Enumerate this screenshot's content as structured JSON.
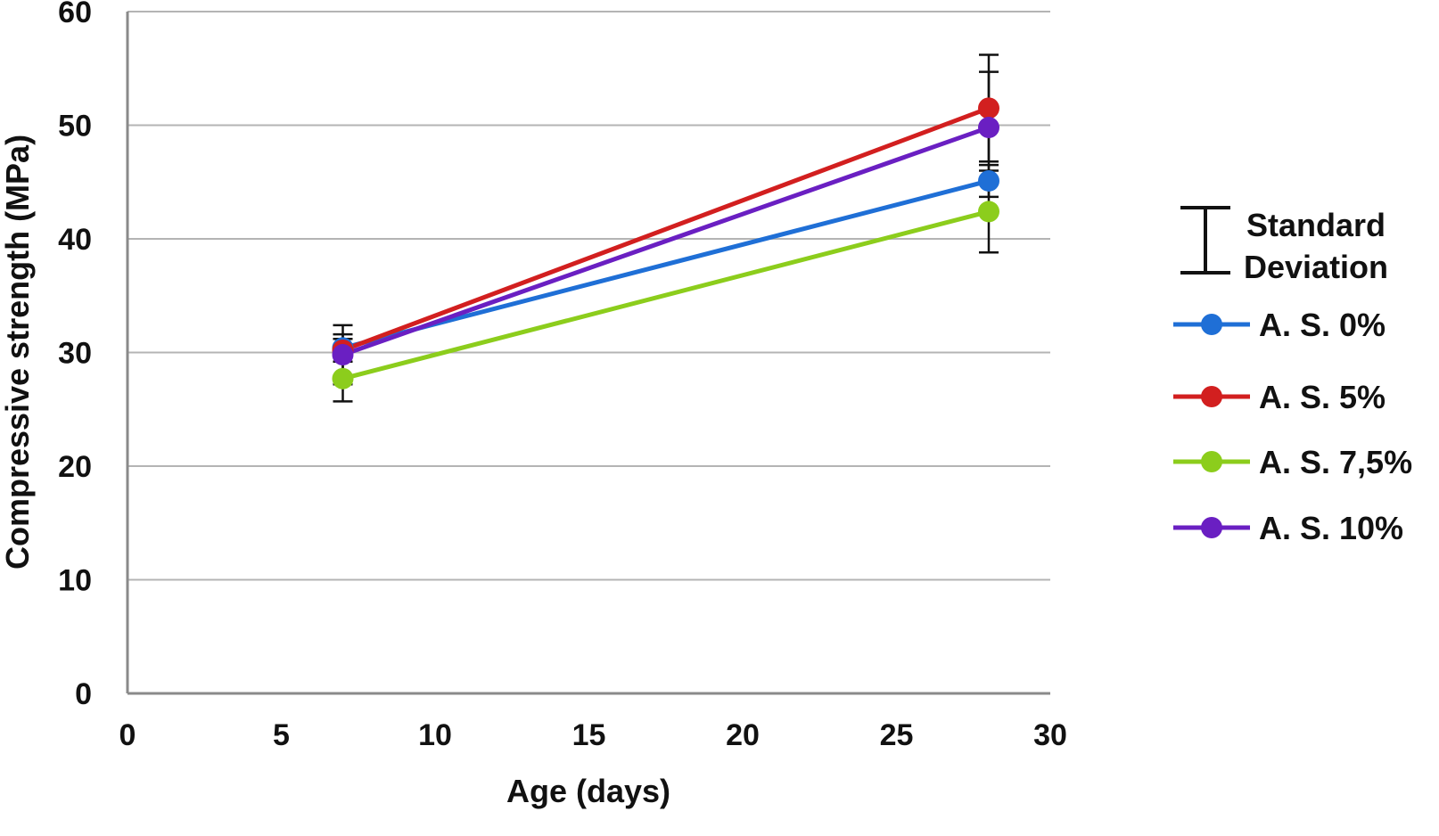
{
  "chart_data": {
    "type": "line",
    "xlabel": "Age (days)",
    "ylabel": "Compressive strength (MPa)",
    "xlim": [
      0,
      30
    ],
    "ylim": [
      0,
      60
    ],
    "x_ticks": [
      "0",
      "5",
      "10",
      "15",
      "20",
      "25",
      "30"
    ],
    "y_ticks": [
      "0",
      "10",
      "20",
      "30",
      "40",
      "50",
      "60"
    ],
    "grid": "horizontal",
    "legend_position": "right",
    "x": [
      7,
      28
    ],
    "error_bar_legend": "Standard Deviation",
    "error_bar_legend_lines": [
      "Standard",
      "Deviation"
    ],
    "series": [
      {
        "name": "A. S. 0%",
        "color": "#1f6fd6",
        "values": [
          30.4,
          45.1
        ],
        "error": [
          1.2,
          1.4
        ]
      },
      {
        "name": "A. S. 5%",
        "color": "#d21f1f",
        "values": [
          30.2,
          51.5
        ],
        "error": [
          1.0,
          4.7
        ]
      },
      {
        "name": "A. S. 7,5%",
        "color": "#8ccd1c",
        "values": [
          27.7,
          42.4
        ],
        "error": [
          2.0,
          3.6
        ]
      },
      {
        "name": "A. S. 10%",
        "color": "#6a1fc2",
        "values": [
          29.8,
          49.8
        ],
        "error": [
          2.6,
          4.9
        ]
      }
    ]
  }
}
